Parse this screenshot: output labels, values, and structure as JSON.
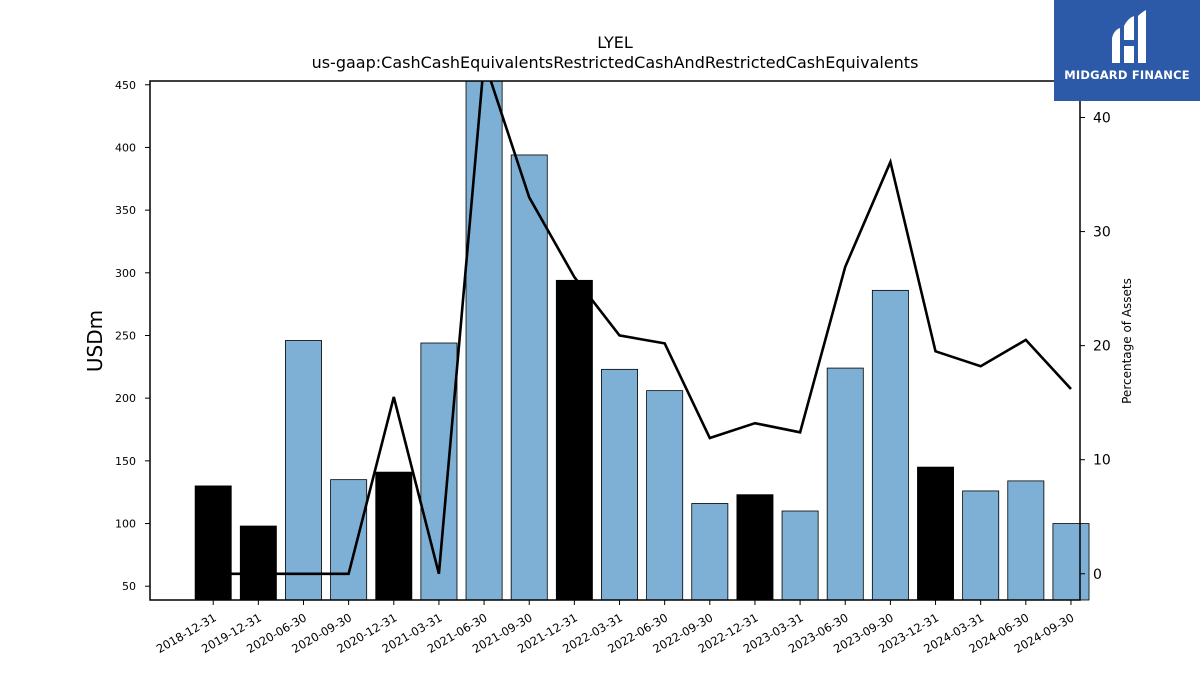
{
  "chart_data": {
    "type": "bar",
    "title": "LYEL",
    "subtitle": "us-gaap:CashCashEquivalentsRestrictedCashAndRestrictedCashEquivalents",
    "ylabel": "USDm",
    "y2label": "Percentage of Assets",
    "ylim": [
      39,
      453
    ],
    "y2lim": [
      -2.3,
      43.2
    ],
    "yticks": [
      50,
      100,
      150,
      200,
      250,
      300,
      350,
      400,
      450
    ],
    "y2ticks": [
      0,
      10,
      20,
      30,
      40
    ],
    "categories": [
      "2018-12-31",
      "2019-12-31",
      "2020-06-30",
      "2020-09-30",
      "2020-12-31",
      "2021-03-31",
      "2021-06-30",
      "2021-09-30",
      "2021-12-31",
      "2022-03-31",
      "2022-06-30",
      "2022-09-30",
      "2022-12-31",
      "2023-03-31",
      "2023-06-30",
      "2023-09-30",
      "2023-12-31",
      "2024-03-31",
      "2024-06-30",
      "2024-09-30"
    ],
    "series": [
      {
        "type": "bar",
        "values": [
          130,
          98,
          246,
          135,
          141,
          244,
          455,
          394,
          294,
          223,
          206,
          116,
          123,
          110,
          224,
          286,
          145,
          126,
          134,
          100
        ],
        "bar_colors": [
          "#000000",
          "#000000",
          "#7eb0d5",
          "#7eb0d5",
          "#000000",
          "#7eb0d5",
          "#7eb0d5",
          "#7eb0d5",
          "#000000",
          "#7eb0d5",
          "#7eb0d5",
          "#7eb0d5",
          "#000000",
          "#7eb0d5",
          "#7eb0d5",
          "#7eb0d5",
          "#000000",
          "#7eb0d5",
          "#7eb0d5",
          "#7eb0d5"
        ]
      },
      {
        "type": "line",
        "axis": "right",
        "color": "#000000",
        "values": [
          0,
          0,
          0,
          0,
          15.5,
          0,
          45,
          33,
          26,
          20.9,
          20.2,
          11.9,
          13.2,
          12.4,
          26.9,
          36.1,
          19.5,
          18.2,
          20.5,
          16.2
        ]
      }
    ],
    "grid": false,
    "legend": "none"
  },
  "logo": {
    "text": "MIDGARD FINANCE",
    "background": "#2d5aa8"
  }
}
